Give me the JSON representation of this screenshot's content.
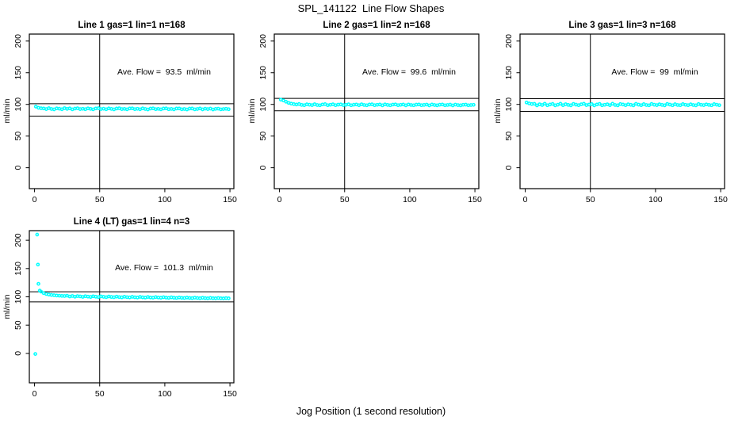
{
  "title": "SPL_141122  Line Flow Shapes",
  "xlabel": "Jog Position (1 second resolution)",
  "colors": {
    "points": "#00FFFF",
    "axis": "#000000",
    "background": "#FFFFFF"
  },
  "chart_data": {
    "type": "scatter",
    "title": "SPL_141122  Line Flow Shapes",
    "xlabel": "Jog Position (1 second resolution)",
    "ylabel": "ml/min",
    "legend": "none",
    "grid": false,
    "x_common": [
      1,
      3,
      5,
      7,
      9,
      11,
      13,
      15,
      17,
      19,
      21,
      23,
      25,
      27,
      29,
      31,
      33,
      35,
      37,
      39,
      41,
      43,
      45,
      47,
      49,
      51,
      53,
      55,
      57,
      59,
      61,
      63,
      65,
      67,
      69,
      71,
      73,
      75,
      77,
      79,
      81,
      83,
      85,
      87,
      89,
      91,
      93,
      95,
      97,
      99,
      101,
      103,
      105,
      107,
      109,
      111,
      113,
      115,
      117,
      119,
      121,
      123,
      125,
      127,
      129,
      131,
      133,
      135,
      137,
      139,
      141,
      143,
      145,
      147,
      149
    ],
    "panels": [
      {
        "title": "Line 1 gas=1 lin=1 n=168",
        "annotation": "Ave. Flow =  93.5  ml/min",
        "ave_flow": 93.5,
        "gas": 1,
        "lin": 1,
        "n": 168,
        "ylabel": "ml/min",
        "xlim": [
          -4,
          153
        ],
        "ylim": [
          -33,
          211
        ],
        "xticks": [
          0,
          50,
          100,
          150
        ],
        "yticks": [
          0,
          50,
          100,
          150,
          200
        ],
        "vline_x": 50,
        "hlines": [
          101,
          81.5
        ],
        "y": [
          96.5,
          94.6,
          93.9,
          93.6,
          92.6,
          94.1,
          92.8,
          92.1,
          93.7,
          93.2,
          92.3,
          94.1,
          92.9,
          93.8,
          92.2,
          93.4,
          93.9,
          92.6,
          93.1,
          92.4,
          93.8,
          93.0,
          92.2,
          93.6,
          94.0,
          92.7,
          93.2,
          92.3,
          93.7,
          92.9,
          92.1,
          93.5,
          93.9,
          92.6,
          93.0,
          92.2,
          93.6,
          93.8,
          92.5,
          93.1,
          92.3,
          93.7,
          92.8,
          92.0,
          93.4,
          93.8,
          92.5,
          93.0,
          92.2,
          93.5,
          93.7,
          92.4,
          92.9,
          92.1,
          93.5,
          93.6,
          92.3,
          92.8,
          92.0,
          93.4,
          93.5,
          92.2,
          92.8,
          93.6,
          92.1,
          93.3,
          92.6,
          93.4,
          92.0,
          92.9,
          93.3,
          92.2,
          92.7,
          93.1,
          92.4
        ]
      },
      {
        "title": "Line 2 gas=1 lin=2 n=168",
        "annotation": "Ave. Flow =  99.6  ml/min",
        "ave_flow": 99.6,
        "gas": 1,
        "lin": 2,
        "n": 168,
        "ylabel": "ml/min",
        "xlim": [
          -4,
          153
        ],
        "ylim": [
          -33,
          211
        ],
        "xticks": [
          0,
          50,
          100,
          150
        ],
        "yticks": [
          0,
          50,
          100,
          150,
          200
        ],
        "vline_x": 50,
        "hlines": [
          109.5,
          90
        ],
        "y": [
          107.5,
          106.2,
          104.2,
          102.4,
          101.2,
          100.4,
          99.8,
          100.6,
          99.2,
          98.7,
          100.1,
          99.5,
          98.9,
          100.3,
          99.0,
          98.6,
          99.9,
          100.4,
          98.8,
          99.4,
          100.2,
          98.7,
          99.6,
          100.0,
          98.9,
          99.3,
          100.1,
          98.6,
          99.5,
          99.9,
          98.8,
          100.2,
          99.1,
          98.6,
          99.8,
          100.1,
          98.7,
          99.4,
          99.9,
          98.5,
          100.0,
          99.2,
          98.6,
          99.7,
          100.0,
          98.8,
          99.3,
          99.8,
          98.5,
          99.9,
          99.1,
          98.6,
          99.6,
          99.9,
          98.7,
          99.2,
          99.7,
          98.4,
          99.8,
          99.0,
          98.5,
          99.5,
          99.8,
          98.6,
          99.1,
          99.6,
          98.4,
          99.7,
          98.9,
          98.5,
          99.4,
          99.6,
          98.6,
          99.0,
          99.3
        ]
      },
      {
        "title": "Line 3 gas=1 lin=3 n=168",
        "annotation": "Ave. Flow =  99  ml/min",
        "ave_flow": 99,
        "gas": 1,
        "lin": 3,
        "n": 168,
        "ylabel": "ml/min",
        "xlim": [
          -4,
          153
        ],
        "ylim": [
          -33,
          211
        ],
        "xticks": [
          0,
          50,
          100,
          150
        ],
        "yticks": [
          0,
          50,
          100,
          150,
          200
        ],
        "vline_x": 50,
        "hlines": [
          109,
          89
        ],
        "y": [
          103.0,
          101.5,
          100.6,
          100.9,
          98.4,
          100.2,
          99.0,
          101.1,
          98.6,
          99.8,
          100.7,
          98.5,
          99.5,
          101.0,
          98.8,
          100.3,
          99.2,
          98.5,
          100.8,
          99.6,
          98.7,
          100.2,
          101.0,
          98.9,
          99.7,
          100.5,
          98.4,
          99.9,
          100.8,
          98.6,
          99.4,
          100.2,
          98.8,
          101.0,
          99.1,
          98.5,
          100.6,
          99.8,
          98.7,
          100.1,
          99.3,
          98.5,
          100.9,
          99.6,
          98.8,
          100.4,
          99.0,
          98.6,
          100.7,
          99.5,
          98.9,
          100.2,
          99.2,
          98.5,
          100.8,
          99.7,
          98.6,
          100.3,
          99.1,
          98.7,
          100.5,
          99.4,
          98.8,
          100.1,
          99.0,
          98.5,
          100.6,
          99.3,
          98.9,
          100.0,
          99.2,
          98.6,
          100.4,
          99.5,
          98.8
        ]
      },
      {
        "title": "Line 4 (LT) gas=1 lin=4 n=3",
        "annotation": "Ave. Flow =  101.3  ml/min",
        "ave_flow": 101.3,
        "gas": 1,
        "lin": 4,
        "n": 3,
        "ylabel": "ml/min",
        "xlim": [
          -4,
          153
        ],
        "ylim": [
          -52,
          217
        ],
        "xticks": [
          0,
          50,
          100,
          150
        ],
        "yticks": [
          0,
          50,
          100,
          150,
          200
        ],
        "vline_x": 50,
        "hlines": [
          109,
          91
        ],
        "x": [
          0.6,
          2,
          2.6,
          3,
          4,
          5,
          7,
          9,
          11,
          13,
          15,
          17,
          19,
          21,
          23,
          25,
          27,
          29,
          31,
          33,
          35,
          37,
          39,
          41,
          43,
          45,
          47,
          49,
          51,
          53,
          55,
          57,
          59,
          61,
          63,
          65,
          67,
          69,
          71,
          73,
          75,
          77,
          79,
          81,
          83,
          85,
          87,
          89,
          91,
          93,
          95,
          97,
          99,
          101,
          103,
          105,
          107,
          109,
          111,
          113,
          115,
          117,
          119,
          121,
          123,
          125,
          127,
          129,
          131,
          133,
          135,
          137,
          139,
          141,
          143,
          145,
          147,
          149
        ],
        "y": [
          -1,
          210,
          157,
          123,
          111,
          109.2,
          106.5,
          105,
          104,
          103.3,
          102.8,
          102.3,
          102,
          101.7,
          101.4,
          102,
          100.6,
          101.5,
          100.2,
          101.3,
          100.8,
          99.9,
          101.1,
          100.4,
          99.8,
          101,
          100.2,
          99.6,
          100.8,
          100,
          99.4,
          100.6,
          99.8,
          99.3,
          100.4,
          99.6,
          99.1,
          100.2,
          99.4,
          99,
          100,
          99.2,
          98.8,
          99.9,
          99.1,
          98.7,
          99.7,
          98.9,
          98.5,
          99.5,
          98.8,
          98.4,
          99.3,
          98.6,
          98.2,
          99.1,
          98.4,
          98,
          98.9,
          98.2,
          97.9,
          98.7,
          98,
          97.7,
          98.5,
          97.9,
          97.6,
          98.3,
          97.7,
          97.5,
          98.1,
          97.6,
          97.4,
          97.9,
          97.5,
          97.3,
          97.7,
          97.4
        ]
      }
    ]
  }
}
